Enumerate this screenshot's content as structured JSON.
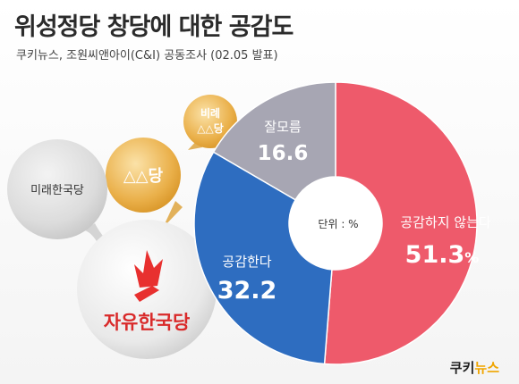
{
  "header": {
    "title": "위성정당 창당에 대한 공감도",
    "subtitle": "쿠키뉴스, 조원씨앤아이(C&I) 공동조사 (02.05 발표)"
  },
  "chart_data": {
    "type": "pie",
    "variant": "donut",
    "title": "위성정당 창당에 대한 공감도",
    "subtitle": "쿠키뉴스, 조원씨앤아이(C&I) 공동조사 (02.05 발표)",
    "unit_label": "단위 : %",
    "slices": [
      {
        "label": "공감하지 않는다",
        "value": 51.3,
        "color": "#ee5a6b"
      },
      {
        "label": "공감한다",
        "value": 32.2,
        "color": "#2e6dc0"
      },
      {
        "label": "잘모름",
        "value": 16.6,
        "color": "#a7a6b3"
      }
    ],
    "value_suffix": "%"
  },
  "bubbles": {
    "main": "자유한국당",
    "secondary": "미래한국당",
    "gold_large": "△△당",
    "gold_small_line1": "비례",
    "gold_small_line2": "△△당"
  },
  "brand": {
    "part1": "쿠키",
    "part2": "뉴스"
  },
  "colors": {
    "disagree": "#ee5a6b",
    "agree": "#2e6dc0",
    "unknown": "#a7a6b3",
    "gold": "#e8a532",
    "party_red": "#e8302f"
  }
}
